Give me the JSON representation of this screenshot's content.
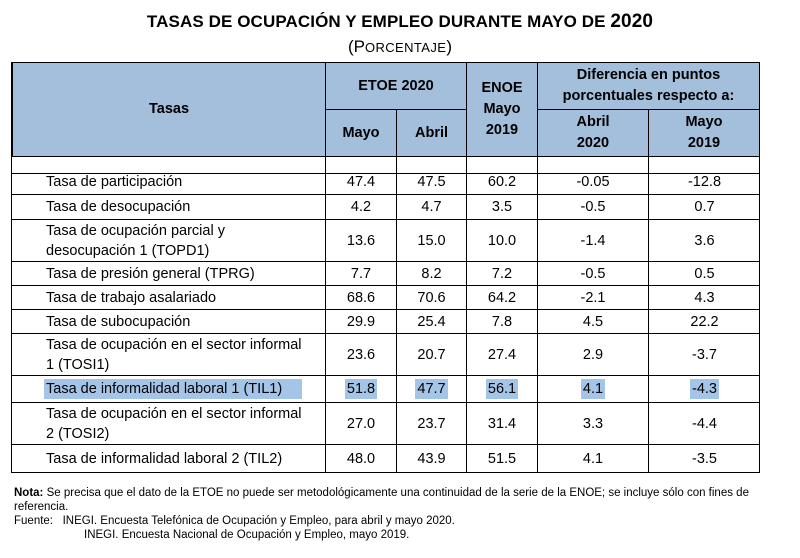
{
  "title": {
    "main": "TASAS DE OCUPACIÓN Y EMPLEO DURANTE MAYO DE",
    "year": "2020",
    "sub_open": "(P",
    "sub_small": "ORCENTAJE",
    "sub_close": ")"
  },
  "headers": {
    "tasas": "Tasas",
    "etoe": "ETOE 2020",
    "mayo": "Mayo",
    "abril": "Abril",
    "enoe": "ENOE Mayo 2019",
    "diferencia": "Diferencia en puntos porcentuales respecto a:",
    "abril2020": "Abril 2020",
    "mayo2019": "Mayo 2019"
  },
  "rows": [
    {
      "label": "Tasa de participación",
      "mayo": "47.4",
      "abril": "47.5",
      "enoe": "60.2",
      "dif_abril": "-0.05",
      "dif_mayo": "-12.8"
    },
    {
      "label": "Tasa de desocupación",
      "mayo": "4.2",
      "abril": "4.7",
      "enoe": "3.5",
      "dif_abril": "-0.5",
      "dif_mayo": "0.7"
    },
    {
      "label": "Tasa de ocupación parcial y desocupación 1 (TOPD1)",
      "mayo": "13.6",
      "abril": "15.0",
      "enoe": "10.0",
      "dif_abril": "-1.4",
      "dif_mayo": "3.6"
    },
    {
      "label": "Tasa de presión general (TPRG)",
      "mayo": "7.7",
      "abril": "8.2",
      "enoe": "7.2",
      "dif_abril": "-0.5",
      "dif_mayo": "0.5"
    },
    {
      "label": "Tasa de trabajo asalariado",
      "mayo": "68.6",
      "abril": "70.6",
      "enoe": "64.2",
      "dif_abril": "-2.1",
      "dif_mayo": "4.3"
    },
    {
      "label": "Tasa de subocupación",
      "mayo": "29.9",
      "abril": "25.4",
      "enoe": "7.8",
      "dif_abril": "4.5",
      "dif_mayo": "22.2"
    },
    {
      "label": "Tasa de ocupación en el sector informal 1 (TOSI1)",
      "mayo": "23.6",
      "abril": "20.7",
      "enoe": "27.4",
      "dif_abril": "2.9",
      "dif_mayo": "-3.7"
    },
    {
      "label": "Tasa de informalidad laboral 1 (TIL1)",
      "mayo": "51.8",
      "abril": "47.7",
      "enoe": "56.1",
      "dif_abril": "4.1",
      "dif_mayo": "-4.3"
    },
    {
      "label": "Tasa de ocupación en el sector informal 2 (TOSI2)",
      "mayo": "27.0",
      "abril": "23.7",
      "enoe": "31.4",
      "dif_abril": "3.3",
      "dif_mayo": "-4.4"
    },
    {
      "label": "Tasa de informalidad laboral 2 (TIL2)",
      "mayo": "48.0",
      "abril": "43.9",
      "enoe": "51.5",
      "dif_abril": "4.1",
      "dif_mayo": "-3.5"
    }
  ],
  "highlighted_row": 7,
  "highlight_color": "#a4c4e8",
  "header_color": "#a4bfdc",
  "notes": {
    "nota_label": "Nota:",
    "nota_text": "Se precisa que el dato de la ETOE no puede ser metodológicamente una continuidad de la serie de la ENOE; se incluye sólo con fines de referencia.",
    "fuente_1": "Fuente:   INEGI. Encuesta Telefónica de Ocupación y Empleo, para abril y mayo 2020.",
    "fuente_2": "INEGI. Encuesta Nacional de Ocupación y Empleo, mayo 2019."
  }
}
